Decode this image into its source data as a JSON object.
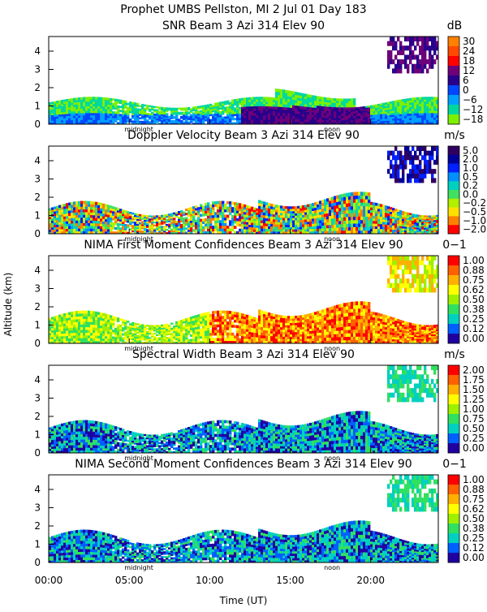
{
  "header": {
    "title": "Prophet  UMBS Pellston, MI    2 Jul 01 Day 183"
  },
  "y_axis_label": "Altitude (km)",
  "x_axis": {
    "label": "Time (UT)",
    "ticks": [
      "00:00",
      "05:00",
      "10:00",
      "15:00",
      "20:00"
    ],
    "tick_hours": [
      0,
      5,
      10,
      15,
      20
    ],
    "range_hours": [
      0,
      24.2
    ],
    "markers": [
      {
        "label": "midnight",
        "hour": 5.6
      },
      {
        "label": "noon",
        "hour": 17.6
      }
    ]
  },
  "chart_data": [
    {
      "type": "heatmap",
      "title": "SNR Beam 3 Azi 314 Elev 90",
      "unit": "dB",
      "ylabel": "Altitude (km)",
      "ylim": [
        0,
        4.8
      ],
      "yticks": [
        "0",
        "1",
        "2",
        "3",
        "4"
      ],
      "colorbar": {
        "labels": [
          "30",
          "24",
          "18",
          "12",
          "6",
          "0",
          "−6",
          "−12",
          "−18"
        ],
        "colors": [
          "#ff8000",
          "#ff4a00",
          "#ff0000",
          "#6e007a",
          "#28008c",
          "#0048ff",
          "#00a0ff",
          "#00d8a0",
          "#7cf000"
        ]
      }
    },
    {
      "type": "heatmap",
      "title": "Doppler Velocity Beam 3 Azi 314 Elev 90",
      "unit": "m/s",
      "ylabel": "Altitude (km)",
      "ylim": [
        0,
        4.8
      ],
      "yticks": [
        "0",
        "1",
        "2",
        "3",
        "4"
      ],
      "colorbar": {
        "labels": [
          "5.0",
          "2.0",
          "1.0",
          "0.5",
          "0.2",
          "0.0",
          "−0.2",
          "−0.5",
          "−1.0",
          "−2.0"
        ],
        "colors": [
          "#300060",
          "#00009a",
          "#0020ff",
          "#0090ff",
          "#00d0c0",
          "#40e060",
          "#b0f000",
          "#ffe000",
          "#ff8000",
          "#ff0000"
        ]
      }
    },
    {
      "type": "heatmap",
      "title": "NIMA First Moment Confidences Beam 3 Azi 314 Elev 90",
      "unit": "0−1",
      "ylabel": "Altitude (km)",
      "ylim": [
        0,
        4.8
      ],
      "yticks": [
        "0",
        "1",
        "2",
        "3",
        "4"
      ],
      "colorbar": {
        "labels": [
          "1.00",
          "0.88",
          "0.75",
          "0.62",
          "0.50",
          "0.38",
          "0.25",
          "0.12",
          "0.00"
        ],
        "colors": [
          "#ff0000",
          "#ff6000",
          "#ffb000",
          "#ffff00",
          "#9ef000",
          "#30e060",
          "#00d0c0",
          "#0060ff",
          "#2000a0"
        ]
      }
    },
    {
      "type": "heatmap",
      "title": "Spectral Width Beam 3 Azi 314 Elev 90",
      "unit": "m/s",
      "ylabel": "Altitude (km)",
      "ylim": [
        0,
        4.8
      ],
      "yticks": [
        "0",
        "1",
        "2",
        "3",
        "4"
      ],
      "colorbar": {
        "labels": [
          "2.00",
          "1.75",
          "1.50",
          "1.25",
          "1.00",
          "0.75",
          "0.50",
          "0.25",
          "0.00"
        ],
        "colors": [
          "#ff0000",
          "#ff6000",
          "#ffb000",
          "#ffff00",
          "#9ef000",
          "#30e060",
          "#00d0c0",
          "#0060ff",
          "#2000a0"
        ]
      }
    },
    {
      "type": "heatmap",
      "title": "NIMA Second Moment Confidences Beam 3 Azi 314 Elev 90",
      "unit": "0−1",
      "ylabel": "Altitude (km)",
      "ylim": [
        0,
        4.8
      ],
      "yticks": [
        "0",
        "1",
        "2",
        "3",
        "4"
      ],
      "colorbar": {
        "labels": [
          "1.00",
          "0.88",
          "0.75",
          "0.62",
          "0.50",
          "0.38",
          "0.25",
          "0.12",
          "0.00"
        ],
        "colors": [
          "#ff0000",
          "#ff6000",
          "#ffb000",
          "#ffff00",
          "#9ef000",
          "#30e060",
          "#00d0c0",
          "#0060ff",
          "#2000a0"
        ]
      }
    }
  ]
}
